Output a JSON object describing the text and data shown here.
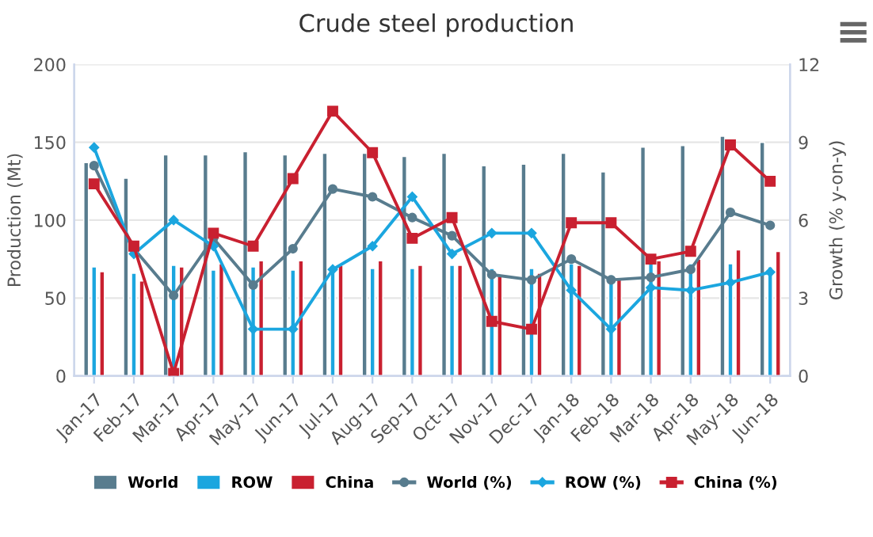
{
  "chart_data": {
    "type": "bar",
    "title": "Crude steel production",
    "ylabel": "Production (Mt)",
    "y2label": "Growth (% y-on-y)",
    "categories": [
      "Jan-17",
      "Feb-17",
      "Mar-17",
      "Apr-17",
      "May-17",
      "Jun-17",
      "Jul-17",
      "Aug-17",
      "Sep-17",
      "Oct-17",
      "Nov-17",
      "Dec-17",
      "Jan-18",
      "Feb-18",
      "Mar-18",
      "Apr-18",
      "May-18",
      "Jun-18"
    ],
    "series": [
      {
        "name": "World",
        "color": "#587c8e",
        "values": [
          137,
          127,
          142,
          142,
          144,
          142,
          143,
          143,
          141,
          143,
          135,
          136,
          143,
          131,
          147,
          148,
          154,
          150
        ]
      },
      {
        "name": "ROW",
        "color": "#1ba6df",
        "values": [
          70,
          66,
          71,
          68,
          70,
          68,
          71,
          69,
          69,
          71,
          69,
          69,
          72,
          65,
          72,
          72,
          72,
          70
        ]
      },
      {
        "name": "China",
        "color": "#c92030",
        "values": [
          67,
          61,
          70,
          72,
          74,
          74,
          71,
          74,
          71,
          71,
          64,
          66,
          71,
          63,
          74,
          75,
          81,
          80
        ]
      },
      {
        "name": "World (%)",
        "type": "line",
        "axis": "y2",
        "marker": "circle",
        "color": "#587c8e",
        "values": [
          8.1,
          4.9,
          3.1,
          5.3,
          3.5,
          4.9,
          7.2,
          6.9,
          6.1,
          5.4,
          3.9,
          3.7,
          4.5,
          3.7,
          3.8,
          4.1,
          6.3,
          5.8
        ]
      },
      {
        "name": "ROW (%)",
        "type": "line",
        "axis": "y2",
        "marker": "diamond",
        "color": "#1ba6df",
        "values": [
          8.8,
          4.7,
          6.0,
          5.0,
          1.8,
          1.8,
          4.1,
          5.0,
          6.9,
          4.7,
          5.5,
          5.5,
          3.3,
          1.8,
          3.4,
          3.3,
          3.6,
          4.0
        ]
      },
      {
        "name": "China (%)",
        "type": "line",
        "axis": "y2",
        "marker": "square",
        "color": "#c92030",
        "values": [
          7.4,
          5.0,
          0.1,
          5.5,
          5.0,
          7.6,
          10.2,
          8.6,
          5.3,
          6.1,
          2.1,
          1.8,
          5.9,
          5.9,
          4.5,
          4.8,
          8.9,
          7.5
        ]
      }
    ],
    "ylim": [
      0,
      200
    ],
    "yticks": [
      0,
      50,
      100,
      150,
      200
    ],
    "y2lim": [
      0,
      12
    ],
    "y2ticks": [
      0,
      3,
      6,
      9,
      12
    ],
    "grid": "y",
    "legend": "bottom"
  }
}
